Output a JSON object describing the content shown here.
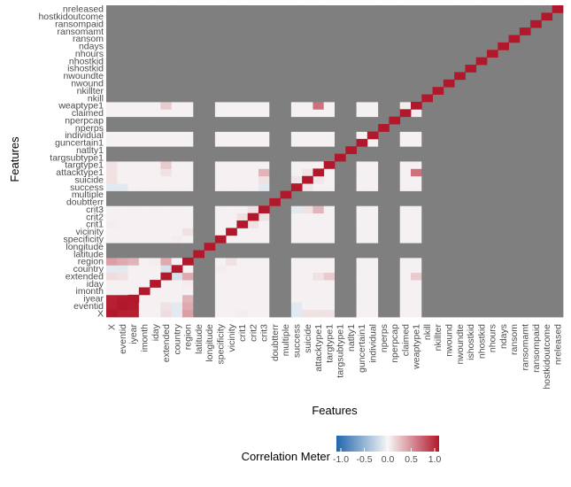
{
  "chart_data": {
    "type": "heatmap",
    "title": "",
    "xlabel": "Features",
    "ylabel": "Features",
    "features": [
      "X",
      "eventid",
      "iyear",
      "imonth",
      "iday",
      "extended",
      "country",
      "region",
      "latitude",
      "longitude",
      "specificity",
      "vicinity",
      "crit1",
      "crit2",
      "crit3",
      "doubtterr",
      "multiple",
      "success",
      "suicide",
      "attacktype1",
      "targtype1",
      "targsubtype1",
      "natlty1",
      "guncertain1",
      "individual",
      "nperps",
      "nperpcap",
      "claimed",
      "weaptype1",
      "nkill",
      "nkillter",
      "nwound",
      "nwoundte",
      "ishostkid",
      "nhostkid",
      "nhours",
      "ndays",
      "ransom",
      "ransomamt",
      "ransompaid",
      "hostkidoutcome",
      "nreleased"
    ],
    "scale": {
      "min": -1.0,
      "max": 1.0,
      "low_color": "#2166ac",
      "mid_color": "#f7f7f7",
      "high_color": "#b2182b"
    },
    "na_color": "#7f7f7f",
    "default_value": 0.03,
    "na_features": [
      "latitude",
      "longitude",
      "doubtterr",
      "multiple",
      "natlty1",
      "targsubtype1",
      "nperps",
      "nperpcap",
      "nkill",
      "nkillter",
      "nwound",
      "nwoundte",
      "ishostkid",
      "nhostkid",
      "nhours",
      "ndays",
      "ransom",
      "ransomamt",
      "ransompaid",
      "hostkidoutcome",
      "nreleased"
    ],
    "notable_correlations": [
      {
        "a": "X",
        "b": "eventid",
        "value": 0.97
      },
      {
        "a": "X",
        "b": "iyear",
        "value": 0.96
      },
      {
        "a": "eventid",
        "b": "iyear",
        "value": 0.99
      },
      {
        "a": "X",
        "b": "region",
        "value": 0.4
      },
      {
        "a": "eventid",
        "b": "region",
        "value": 0.35
      },
      {
        "a": "iyear",
        "b": "region",
        "value": 0.3
      },
      {
        "a": "X",
        "b": "country",
        "value": -0.1
      },
      {
        "a": "eventid",
        "b": "country",
        "value": -0.1
      },
      {
        "a": "X",
        "b": "extended",
        "value": 0.12
      },
      {
        "a": "eventid",
        "b": "extended",
        "value": 0.1
      },
      {
        "a": "country",
        "b": "extended",
        "value": -0.15
      },
      {
        "a": "extended",
        "b": "region",
        "value": 0.35
      },
      {
        "a": "X",
        "b": "suicide",
        "value": 0.1
      },
      {
        "a": "X",
        "b": "success",
        "value": -0.1
      },
      {
        "a": "eventid",
        "b": "success",
        "value": -0.1
      },
      {
        "a": "X",
        "b": "attacktype1",
        "value": 0.1
      },
      {
        "a": "X",
        "b": "targtype1",
        "value": 0.1
      },
      {
        "a": "extended",
        "b": "targtype1",
        "value": 0.2
      },
      {
        "a": "extended",
        "b": "attacktype1",
        "value": 0.1
      },
      {
        "a": "extended",
        "b": "weaptype1",
        "value": 0.2
      },
      {
        "a": "X",
        "b": "crit1",
        "value": 0.05
      },
      {
        "a": "vicinity",
        "b": "region",
        "value": 0.1
      },
      {
        "a": "specificity",
        "b": "country",
        "value": 0.05
      },
      {
        "a": "success",
        "b": "crit3",
        "value": -0.1
      },
      {
        "a": "suicide",
        "b": "crit3",
        "value": 0.1
      },
      {
        "a": "attacktype1",
        "b": "crit3",
        "value": 0.3
      },
      {
        "a": "attacktype1",
        "b": "weaptype1",
        "value": 0.6
      },
      {
        "a": "success",
        "b": "suicide",
        "value": 0.08
      },
      {
        "a": "suicide",
        "b": "attacktype1",
        "value": 0.08
      },
      {
        "a": "crit1",
        "b": "crit2",
        "value": 0.1
      },
      {
        "a": "crit2",
        "b": "crit3",
        "value": 0.1
      },
      {
        "a": "iday",
        "b": "region",
        "value": 0.05
      },
      {
        "a": "claimed",
        "b": "weaptype1",
        "value": 0.05
      }
    ],
    "legend": {
      "title": "Correlation Meter",
      "position": "bottom",
      "ticks": [
        "-1.0",
        "-0.5",
        "0.0",
        "0.5",
        "1.0"
      ]
    }
  }
}
